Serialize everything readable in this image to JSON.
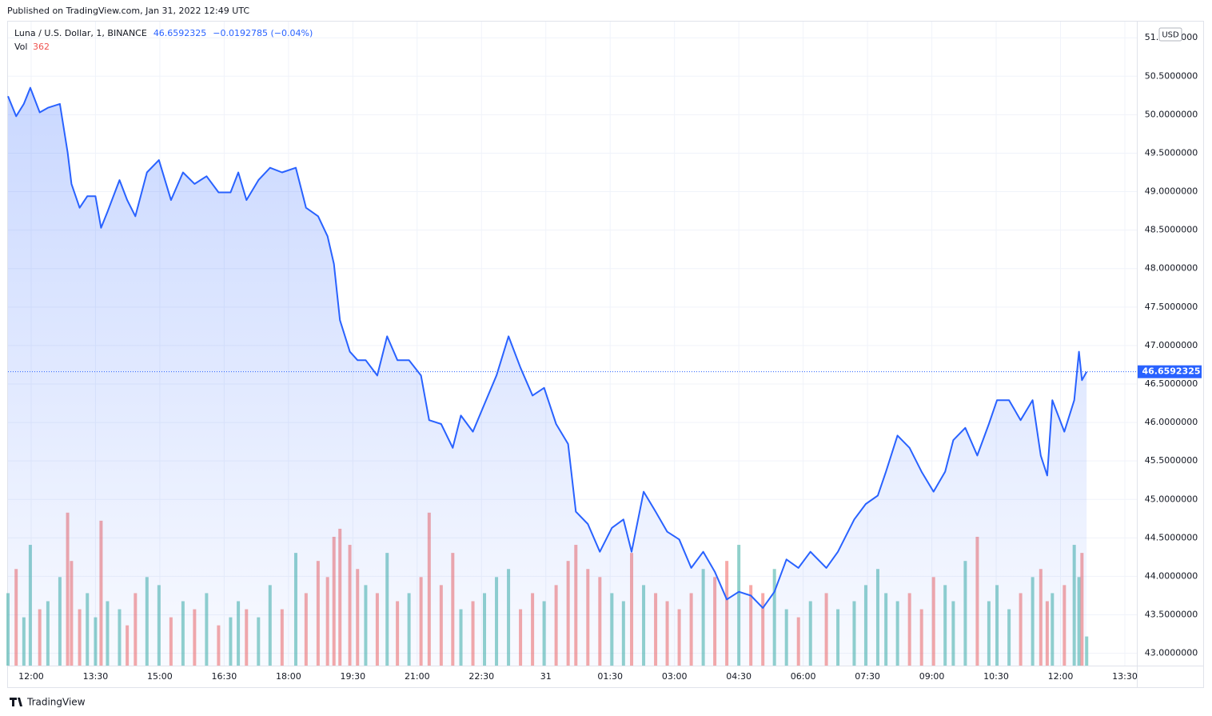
{
  "chart_data": {
    "type": "area",
    "published": "Published on TradingView.com, Jan 31, 2022 12:49 UTC",
    "symbol": "Luna / U.S. Dollar, 1, BINANCE",
    "change_text": "−0.0192785 (−0.04%)",
    "currency": "USD",
    "brand": "TradingView",
    "x": [
      11.46,
      11.65,
      11.83,
      11.98,
      12.2,
      12.39,
      12.67,
      12.85,
      12.94,
      13.13,
      13.31,
      13.5,
      13.63,
      13.78,
      14.06,
      14.24,
      14.43,
      14.7,
      14.98,
      15.26,
      15.54,
      15.81,
      16.09,
      16.37,
      16.65,
      16.83,
      17.02,
      17.3,
      17.57,
      17.85,
      18.17,
      18.41,
      18.69,
      18.91,
      19.06,
      19.2,
      19.43,
      19.61,
      19.8,
      20.07,
      20.3,
      20.54,
      20.81,
      21.09,
      21.28,
      21.56,
      21.83,
      22.02,
      22.3,
      22.57,
      22.85,
      23.13,
      23.41,
      23.69,
      23.96,
      24.24,
      24.52,
      24.7,
      24.98,
      25.26,
      25.54,
      25.81,
      26.0,
      26.28,
      26.56,
      26.83,
      27.11,
      27.39,
      27.67,
      27.94,
      28.22,
      28.5,
      28.78,
      29.06,
      29.33,
      29.61,
      29.89,
      30.17,
      30.54,
      30.81,
      31.19,
      31.46,
      31.74,
      31.93,
      32.2,
      32.48,
      32.76,
      33.04,
      33.31,
      33.5,
      33.78,
      34.06,
      34.33,
      34.52,
      34.8,
      35.07,
      35.35,
      35.54,
      35.69,
      35.81,
      36.09,
      36.32,
      36.43,
      36.5,
      36.61
    ],
    "series": [
      {
        "name": "Luna",
        "color": "#2962ff",
        "values": [
          50.24,
          49.98,
          50.14,
          50.35,
          50.03,
          50.09,
          50.14,
          49.51,
          49.1,
          48.79,
          48.94,
          48.94,
          48.53,
          48.74,
          49.15,
          48.89,
          48.68,
          49.25,
          49.41,
          48.89,
          49.25,
          49.1,
          49.2,
          48.99,
          48.99,
          49.25,
          48.89,
          49.15,
          49.31,
          49.25,
          49.31,
          48.79,
          48.68,
          48.42,
          48.06,
          47.33,
          46.92,
          46.81,
          46.81,
          46.61,
          47.12,
          46.81,
          46.81,
          46.61,
          46.03,
          45.98,
          45.67,
          46.09,
          45.88,
          46.24,
          46.61,
          47.12,
          46.71,
          46.35,
          46.45,
          45.98,
          45.72,
          44.84,
          44.68,
          44.32,
          44.63,
          44.74,
          44.32,
          45.1,
          44.84,
          44.58,
          44.48,
          44.11,
          44.32,
          44.06,
          43.7,
          43.8,
          43.75,
          43.59,
          43.8,
          44.22,
          44.11,
          44.32,
          44.11,
          44.32,
          44.74,
          44.94,
          45.05,
          45.36,
          45.83,
          45.67,
          45.36,
          45.1,
          45.36,
          45.77,
          45.93,
          45.57,
          45.98,
          46.29,
          46.29,
          46.03,
          46.29,
          45.57,
          45.31,
          46.29,
          45.88,
          46.29,
          46.92,
          46.55,
          46.6592325
        ]
      },
      {
        "name": "Vol",
        "axis": "y2",
        "up_color": "#26a69a",
        "down_color": "#ef5350",
        "values": [
          900,
          1200,
          600,
          1500,
          700,
          800,
          1100,
          1900,
          1300,
          700,
          900,
          600,
          1800,
          800,
          700,
          500,
          900,
          1100,
          1000,
          600,
          800,
          700,
          900,
          500,
          600,
          800,
          700,
          600,
          1000,
          700,
          1400,
          900,
          1300,
          1100,
          1600,
          1700,
          1500,
          1200,
          1000,
          900,
          1400,
          800,
          900,
          1100,
          1900,
          1000,
          1400,
          700,
          800,
          900,
          1100,
          1200,
          700,
          900,
          800,
          1000,
          1300,
          1500,
          1200,
          1100,
          900,
          800,
          1400,
          1000,
          900,
          800,
          700,
          900,
          1200,
          1100,
          1300,
          1500,
          1000,
          900,
          1200,
          700,
          600,
          800,
          900,
          700,
          800,
          1000,
          1200,
          900,
          800,
          900,
          700,
          1100,
          1000,
          800,
          1300,
          1600,
          800,
          1000,
          700,
          900,
          1100,
          1200,
          800,
          900,
          1000,
          1500,
          1100,
          1400,
          362
        ]
      }
    ],
    "xlim": [
      11.46,
      37.78
    ],
    "xticks": [
      {
        "value": 12,
        "label": "12:00"
      },
      {
        "value": 13.5,
        "label": "13:30"
      },
      {
        "value": 15,
        "label": "15:00"
      },
      {
        "value": 16.5,
        "label": "16:30"
      },
      {
        "value": 18,
        "label": "18:00"
      },
      {
        "value": 19.5,
        "label": "19:30"
      },
      {
        "value": 21,
        "label": "21:00"
      },
      {
        "value": 22.5,
        "label": "22:30"
      },
      {
        "value": 24,
        "label": "31"
      },
      {
        "value": 25.5,
        "label": "01:30"
      },
      {
        "value": 27,
        "label": "03:00"
      },
      {
        "value": 28.5,
        "label": "04:30"
      },
      {
        "value": 30,
        "label": "06:00"
      },
      {
        "value": 31.5,
        "label": "07:30"
      },
      {
        "value": 33,
        "label": "09:00"
      },
      {
        "value": 34.5,
        "label": "10:30"
      },
      {
        "value": 36,
        "label": "12:00"
      },
      {
        "value": 37.5,
        "label": "13:30"
      }
    ],
    "ylim": [
      42.84,
      51.21
    ],
    "yticks": [
      {
        "value": 43,
        "label": "43.0000000"
      },
      {
        "value": 43.5,
        "label": "43.5000000"
      },
      {
        "value": 44,
        "label": "44.0000000"
      },
      {
        "value": 44.5,
        "label": "44.5000000"
      },
      {
        "value": 45,
        "label": "45.0000000"
      },
      {
        "value": 45.5,
        "label": "45.5000000"
      },
      {
        "value": 46,
        "label": "46.0000000"
      },
      {
        "value": 46.5,
        "label": "46.5000000"
      },
      {
        "value": 47,
        "label": "47.0000000"
      },
      {
        "value": 47.5,
        "label": "47.5000000"
      },
      {
        "value": 48,
        "label": "48.0000000"
      },
      {
        "value": 48.5,
        "label": "48.5000000"
      },
      {
        "value": 49,
        "label": "49.0000000"
      },
      {
        "value": 49.5,
        "label": "49.5000000"
      },
      {
        "value": 50,
        "label": "50.0000000"
      },
      {
        "value": 50.5,
        "label": "50.5000000"
      },
      {
        "value": 51,
        "label": "51.0000000"
      }
    ],
    "y2lim": [
      0,
      8000
    ],
    "grid": true
  }
}
